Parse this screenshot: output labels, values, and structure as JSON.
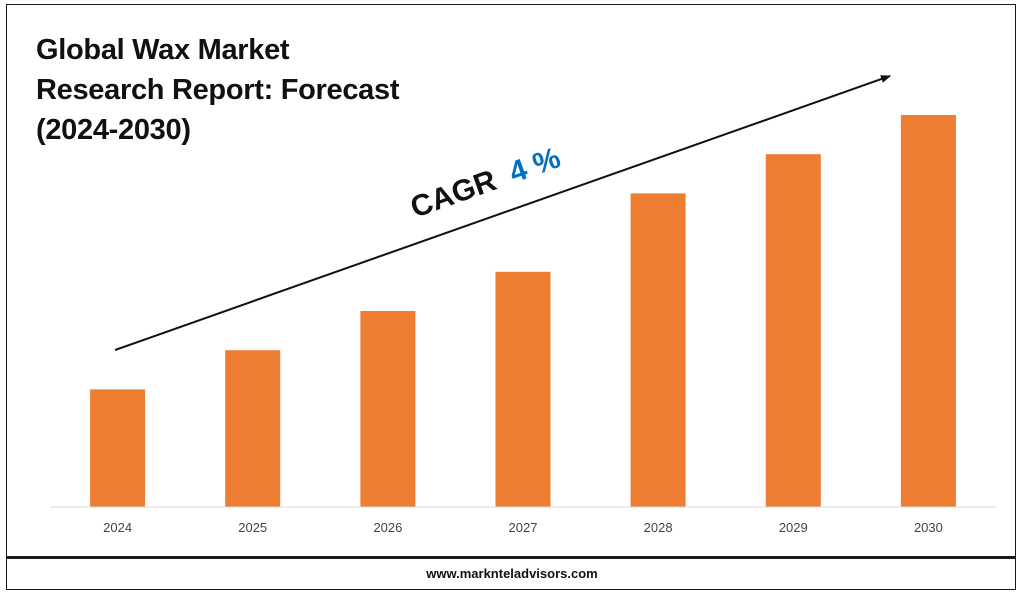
{
  "header": {
    "title_lines": [
      "Global Wax Market",
      "Research Report: Forecast",
      "(2024-2030)"
    ]
  },
  "annotation": {
    "cagr_label": "CAGR",
    "cagr_value": "4 %"
  },
  "footer": {
    "website": "www.marknteladvisors.com"
  },
  "colors": {
    "bar": "#ED7D31",
    "cagr_value": "#0070C0",
    "text": "#111111",
    "axis": "#D9D9D9"
  },
  "chart_data": {
    "type": "bar",
    "title": "Global Wax Market Research Report: Forecast (2024-2030)",
    "categories": [
      "2024",
      "2025",
      "2026",
      "2027",
      "2028",
      "2029",
      "2030"
    ],
    "values": [
      30,
      40,
      50,
      60,
      80,
      90,
      100
    ],
    "ylim": [
      0,
      100
    ],
    "xlabel": "",
    "ylabel": "",
    "grid": false,
    "legend": "none"
  }
}
